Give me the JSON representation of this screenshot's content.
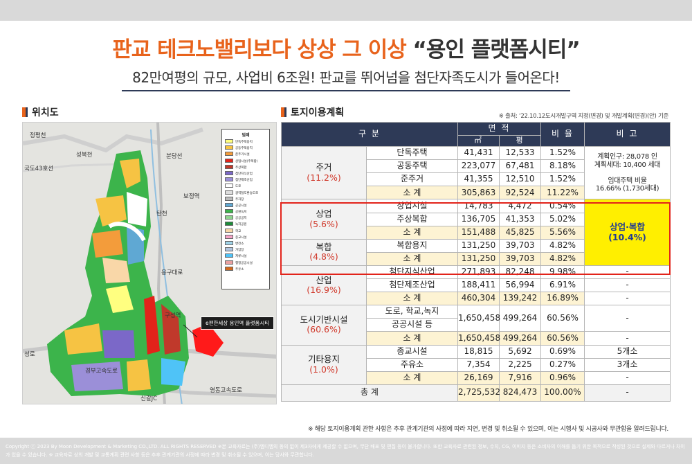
{
  "header": {
    "title_main": "판교 테크노밸리보다 상상 그 이상 ",
    "title_quote": "“용인 플랫폼시티”",
    "subtitle": "82만여평의 규모, 사업비 6조원! 판교를 뛰어넘을 첨단자족도시가 들어온다!"
  },
  "sections": {
    "map_title": "위치도",
    "table_title": "토지이용계획",
    "source": "※ 출처: ‘22.10.12도시개발구역 지정(변경) 및 개발계획(변경)(안) 기준"
  },
  "map": {
    "labels": [
      "정평천",
      "성복천",
      "국도43호선",
      "분당선",
      "보정역",
      "탄천",
      "용구대로",
      "구성역",
      "성로",
      "경부고속도로",
      "영동고속도로",
      "신갈JC"
    ],
    "callout": "e편한세상 용인역 플랫폼시티",
    "legend_title": "범례",
    "legend": [
      {
        "label": "단독주택용지",
        "color": "#ffff80"
      },
      {
        "label": "공동주택용지",
        "color": "#f6c343"
      },
      {
        "label": "준주거시설",
        "color": "#f39c3b"
      },
      {
        "label": "상업시설(주복합)",
        "color": "#e2231a"
      },
      {
        "label": "주상복합",
        "color": "#c0392b"
      },
      {
        "label": "첨단지식산업",
        "color": "#7b68c8"
      },
      {
        "label": "첨단제조산업",
        "color": "#9b8fd8"
      },
      {
        "label": "도로",
        "color": "#ffffff"
      },
      {
        "label": "광역철도환승도로",
        "color": "#dddddd"
      },
      {
        "label": "주차장",
        "color": "#bbbbbb"
      },
      {
        "label": "공공시설",
        "color": "#5fa8d3"
      },
      {
        "label": "공원녹지",
        "color": "#3cb44b"
      },
      {
        "label": "공공공지",
        "color": "#8fd48f"
      },
      {
        "label": "녹지공원",
        "color": "#1e8c3a"
      },
      {
        "label": "학교",
        "color": "#f9d7a8"
      },
      {
        "label": "종교시설",
        "color": "#f5a3c7"
      },
      {
        "label": "변전소",
        "color": "#9fd3e8"
      },
      {
        "label": "가압장",
        "color": "#b0c4de"
      },
      {
        "label": "저류시설",
        "color": "#4fc3f7"
      },
      {
        "label": "행정공공시설",
        "color": "#e8a0a0"
      },
      {
        "label": "주유소",
        "color": "#d2691e"
      }
    ]
  },
  "table": {
    "h_class": "구 분",
    "h_area": "면 적",
    "h_sqm": "㎡",
    "h_pyeong": "평",
    "h_ratio": "비 율",
    "h_note": "비 고",
    "groups": [
      {
        "name": "주거",
        "pct": "(11.2%)",
        "rows": [
          {
            "label": "단독주택",
            "sqm": "41,431",
            "pyeong": "12,533",
            "ratio": "1.52%"
          },
          {
            "label": "공동주택",
            "sqm": "223,077",
            "pyeong": "67,481",
            "ratio": "8.18%"
          },
          {
            "label": "준주거",
            "sqm": "41,355",
            "pyeong": "12,510",
            "ratio": "1.52%"
          },
          {
            "label": "소 계",
            "sqm": "305,863",
            "pyeong": "92,524",
            "ratio": "11.22%"
          }
        ],
        "note1": "계획인구: 28,078 인",
        "note2": "계획세대: 10,400 세대",
        "note3": "임대주택 비율",
        "note4": "16.66% (1,730세대)"
      },
      {
        "name": "상업",
        "pct": "(5.6%)",
        "rows": [
          {
            "label": "상업시설",
            "sqm": "14,783",
            "pyeong": "4,472",
            "ratio": "0.54%"
          },
          {
            "label": "주상복합",
            "sqm": "136,705",
            "pyeong": "41,353",
            "ratio": "5.02%"
          },
          {
            "label": "소 계",
            "sqm": "151,488",
            "pyeong": "45,825",
            "ratio": "5.56%"
          }
        ],
        "note1": "상업·복합",
        "note2": "(10.4%)"
      },
      {
        "name": "복합",
        "pct": "(4.8%)",
        "rows": [
          {
            "label": "복합용지",
            "sqm": "131,250",
            "pyeong": "39,703",
            "ratio": "4.82%"
          },
          {
            "label": "소 계",
            "sqm": "131,250",
            "pyeong": "39,703",
            "ratio": "4.82%"
          }
        ]
      },
      {
        "name": "산업",
        "pct": "(16.9%)",
        "rows": [
          {
            "label": "첨단지식산업",
            "sqm": "271,893",
            "pyeong": "82,248",
            "ratio": "9.98%",
            "note": "-"
          },
          {
            "label": "첨단제조산업",
            "sqm": "188,411",
            "pyeong": "56,994",
            "ratio": "6.91%",
            "note": "-"
          },
          {
            "label": "소 계",
            "sqm": "460,304",
            "pyeong": "139,242",
            "ratio": "16.89%",
            "note": "-"
          }
        ]
      },
      {
        "name": "도시기반시설",
        "pct": "(60.6%)",
        "rows": [
          {
            "label_a": "도로, 학교,녹지",
            "label_b": "공공시설 등",
            "sqm": "1,650,458",
            "pyeong": "499,264",
            "ratio": "60.56%",
            "note": "-"
          },
          {
            "label": "소 계",
            "sqm": "1,650,458",
            "pyeong": "499,264",
            "ratio": "60.56%",
            "note": "-"
          }
        ]
      },
      {
        "name": "기타용지",
        "pct": "(1.0%)",
        "rows": [
          {
            "label": "종교시설",
            "sqm": "18,815",
            "pyeong": "5,692",
            "ratio": "0.69%",
            "note": "5개소"
          },
          {
            "label": "주유소",
            "sqm": "7,354",
            "pyeong": "2,225",
            "ratio": "0.27%",
            "note": "3개소"
          },
          {
            "label": "소 계",
            "sqm": "26,169",
            "pyeong": "7,916",
            "ratio": "0.96%",
            "note": "-"
          }
        ]
      }
    ],
    "total": {
      "label": "총 계",
      "sqm": "2,725,532",
      "pyeong": "824,473",
      "ratio": "100.00%",
      "note": "-"
    }
  },
  "footnote": "※ 해당 토지이용계획 관한 사항은 추후 관계기관의 사정에 따라 지연, 변경 및 취소될 수 있으며, 이는 시행사 및 시공사와 무관함을 알려드립니다.",
  "copyright": "Copyright ⓒ 2023 By Moon Development & Marketing CO.,LTD. ALL RIGHTS RESERVED  ※본 교육자료는 (주)엠디엠의 동의 없이 제3자에게 제공할 수 없으며, 무단 배포 및 편집 등이 불가합니다. 또한 교육자료 관련된 정보, 수치, CG, 이미지 등은 소비자의 이해를 돕기 위한 목적으로 작성된 것으로 실제와 다르거나 차이가 있을 수 있습니다. ※ 교육자료 상의 개발 및 교통계획 관련 사항 등은 추후 관계기관의 사정에 따라 변경 및 취소될 수 있으며, 이는 당사와 무관합니다."
}
